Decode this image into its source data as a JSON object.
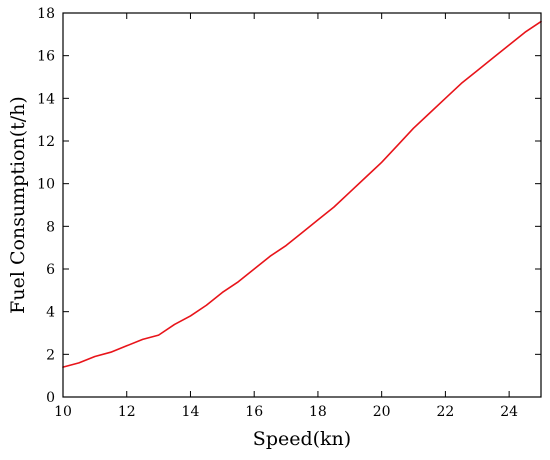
{
  "chart_data": {
    "type": "line",
    "title": "",
    "xlabel": "Speed(kn)",
    "ylabel": "Fuel Consumption(t/h)",
    "xlim": [
      10,
      25
    ],
    "ylim": [
      0,
      18
    ],
    "xticks": [
      10,
      12,
      14,
      16,
      18,
      20,
      22,
      24
    ],
    "yticks": [
      0,
      2,
      4,
      6,
      8,
      10,
      12,
      14,
      16,
      18
    ],
    "grid": false,
    "legend": "none",
    "series": [
      {
        "color": "#e8141a",
        "x": [
          10,
          10.5,
          11,
          11.5,
          12,
          12.5,
          13,
          13.5,
          14,
          14.5,
          15,
          15.5,
          16,
          16.5,
          17,
          17.5,
          18,
          18.5,
          19,
          19.5,
          20,
          20.5,
          21,
          21.5,
          22,
          22.5,
          23,
          23.5,
          24,
          24.5,
          25
        ],
        "y": [
          1.4,
          1.6,
          1.9,
          2.1,
          2.4,
          2.7,
          2.9,
          3.4,
          3.8,
          4.3,
          4.9,
          5.4,
          6.0,
          6.6,
          7.1,
          7.7,
          8.3,
          8.9,
          9.6,
          10.3,
          11.0,
          11.8,
          12.6,
          13.3,
          14.0,
          14.7,
          15.3,
          15.9,
          16.5,
          17.1,
          17.6
        ]
      }
    ]
  }
}
